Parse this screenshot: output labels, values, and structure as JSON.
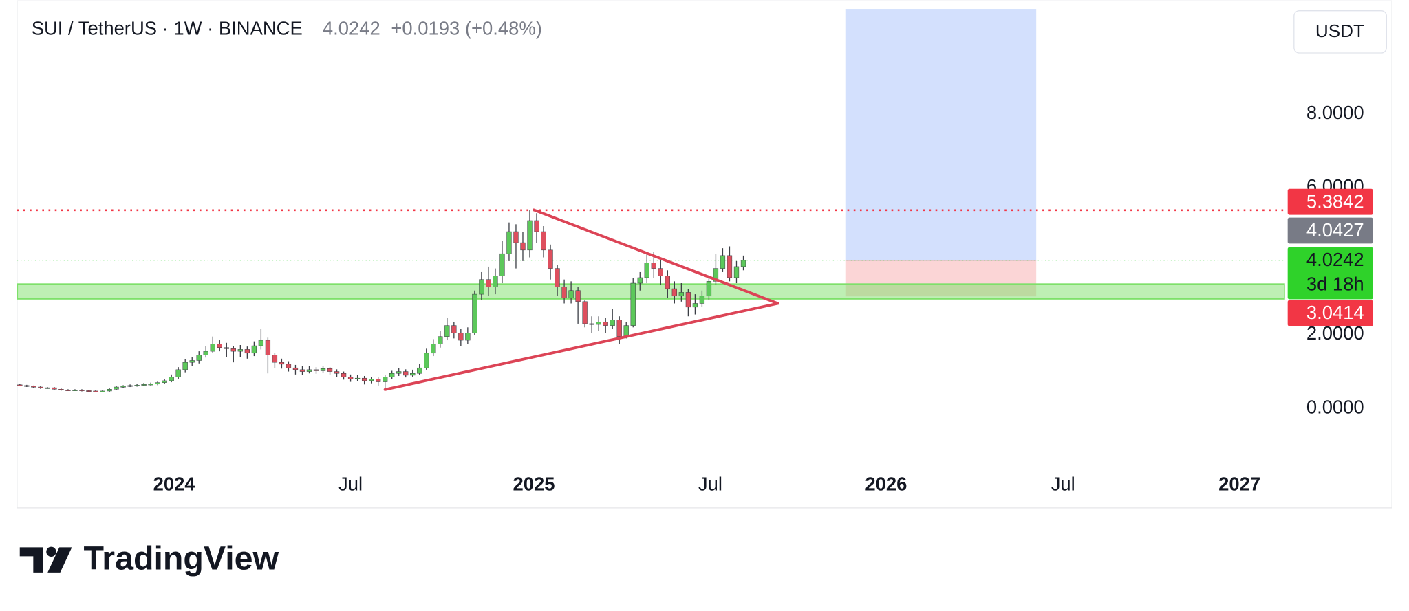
{
  "header": {
    "symbol": "SUI / TetherUS · 1W · BINANCE",
    "last": "4.0242",
    "change": "+0.0193 (+0.48%)",
    "currency_button": "USDT"
  },
  "chart_data": {
    "type": "candlestick",
    "xlim": [
      -0.4,
      183.6
    ],
    "xticks": [
      {
        "value": 22.4,
        "label": "2024"
      },
      {
        "value": 48,
        "label": "Jul"
      },
      {
        "value": 74.6,
        "label": "2025"
      },
      {
        "value": 100.2,
        "label": "Jul"
      },
      {
        "value": 125.7,
        "label": "2026"
      },
      {
        "value": 151.4,
        "label": "Jul"
      },
      {
        "value": 177,
        "label": "2027"
      }
    ],
    "ylim": [
      -1.46,
      10.85
    ],
    "yticks": [
      {
        "value": 0,
        "label": "0.0000"
      },
      {
        "value": 2,
        "label": "2.0000"
      },
      {
        "value": 6,
        "label": "6.0000"
      },
      {
        "value": 8,
        "label": "8.0000"
      }
    ],
    "up_color": "#5cc85a",
    "down_color": "#de4f5e",
    "open": [
      0.64,
      0.62,
      0.6,
      0.58,
      0.55,
      0.56,
      0.52,
      0.5,
      0.49,
      0.5,
      0.48,
      0.47,
      0.46,
      0.47,
      0.52,
      0.58,
      0.6,
      0.62,
      0.63,
      0.65,
      0.66,
      0.7,
      0.75,
      0.85,
      1.05,
      1.25,
      1.3,
      1.45,
      1.55,
      1.75,
      1.65,
      1.62,
      1.55,
      1.6,
      1.5,
      1.7,
      1.85,
      1.45,
      1.25,
      1.2,
      1.1,
      1.05,
      1.0,
      1.05,
      1.02,
      1.08,
      1.0,
      0.95,
      0.85,
      0.8,
      0.82,
      0.75,
      0.8,
      0.72,
      0.85,
      0.95,
      1.0,
      0.9,
      0.95,
      1.1,
      1.5,
      1.75,
      1.95,
      2.25,
      2.05,
      1.85,
      2.05,
      3.1,
      3.5,
      3.3,
      3.6,
      4.2,
      4.8,
      4.5,
      4.3,
      5.1,
      4.8,
      4.3,
      3.8,
      3.3,
      3.0,
      3.2,
      2.9,
      2.3,
      2.28,
      2.35,
      2.25,
      2.4,
      1.95,
      2.25,
      3.4,
      3.55,
      3.95,
      3.8,
      3.6,
      3.25,
      3.05,
      3.15,
      2.75,
      2.85,
      3.05,
      3.45,
      3.8,
      4.15,
      3.55,
      3.85
    ],
    "high": [
      0.67,
      0.64,
      0.62,
      0.6,
      0.58,
      0.58,
      0.54,
      0.52,
      0.52,
      0.52,
      0.5,
      0.49,
      0.5,
      0.55,
      0.61,
      0.63,
      0.65,
      0.67,
      0.69,
      0.7,
      0.74,
      0.79,
      0.92,
      1.12,
      1.33,
      1.4,
      1.55,
      1.7,
      1.95,
      1.85,
      1.78,
      1.7,
      1.72,
      1.68,
      1.82,
      2.15,
      1.92,
      1.5,
      1.35,
      1.28,
      1.18,
      1.15,
      1.15,
      1.12,
      1.15,
      1.12,
      1.06,
      1.0,
      0.92,
      0.9,
      0.88,
      0.86,
      0.84,
      0.9,
      1.02,
      1.1,
      1.06,
      1.05,
      1.2,
      1.62,
      1.88,
      2.1,
      2.45,
      2.35,
      2.15,
      2.2,
      3.2,
      3.7,
      3.85,
      3.8,
      4.55,
      5.05,
      5.0,
      4.8,
      5.38,
      5.3,
      4.95,
      4.45,
      3.9,
      3.5,
      3.45,
      3.3,
      2.95,
      2.5,
      2.5,
      2.45,
      2.7,
      2.5,
      2.35,
      3.55,
      3.7,
      4.2,
      4.25,
      4.05,
      3.75,
      3.45,
      3.4,
      3.25,
      3.1,
      3.2,
      3.6,
      4.2,
      4.35,
      4.4,
      4.0,
      4.15
    ],
    "low": [
      0.6,
      0.58,
      0.56,
      0.53,
      0.53,
      0.5,
      0.48,
      0.47,
      0.47,
      0.46,
      0.45,
      0.44,
      0.44,
      0.45,
      0.5,
      0.56,
      0.58,
      0.59,
      0.6,
      0.62,
      0.63,
      0.66,
      0.71,
      0.8,
      0.98,
      1.15,
      1.22,
      1.38,
      1.5,
      1.55,
      1.4,
      1.25,
      1.4,
      1.35,
      1.42,
      1.6,
      0.95,
      1.1,
      1.08,
      1.0,
      0.92,
      0.9,
      0.95,
      0.94,
      0.97,
      0.92,
      0.85,
      0.78,
      0.72,
      0.74,
      0.65,
      0.68,
      0.62,
      0.52,
      0.8,
      0.88,
      0.84,
      0.85,
      0.9,
      1.05,
      1.42,
      1.65,
      1.85,
      1.9,
      1.7,
      1.75,
      2.0,
      2.95,
      3.05,
      3.1,
      3.4,
      4.0,
      3.8,
      4.0,
      4.1,
      4.5,
      4.1,
      3.5,
      3.05,
      2.85,
      2.85,
      2.3,
      2.2,
      2.05,
      2.1,
      2.05,
      2.15,
      1.75,
      1.9,
      2.2,
      3.2,
      3.4,
      3.55,
      3.35,
      3.0,
      2.85,
      2.9,
      2.5,
      2.55,
      2.75,
      2.95,
      3.35,
      3.7,
      3.45,
      3.4,
      3.75
    ],
    "close": [
      0.62,
      0.6,
      0.58,
      0.55,
      0.56,
      0.52,
      0.5,
      0.49,
      0.5,
      0.48,
      0.47,
      0.46,
      0.47,
      0.52,
      0.58,
      0.6,
      0.62,
      0.63,
      0.65,
      0.66,
      0.7,
      0.75,
      0.85,
      1.05,
      1.25,
      1.3,
      1.45,
      1.55,
      1.75,
      1.65,
      1.62,
      1.55,
      1.6,
      1.5,
      1.7,
      1.85,
      1.45,
      1.25,
      1.2,
      1.1,
      1.05,
      1.0,
      1.05,
      1.02,
      1.08,
      1.0,
      0.95,
      0.85,
      0.8,
      0.82,
      0.75,
      0.8,
      0.72,
      0.85,
      0.95,
      1.0,
      0.9,
      0.95,
      1.1,
      1.5,
      1.75,
      1.95,
      2.25,
      2.05,
      1.85,
      2.05,
      3.1,
      3.5,
      3.3,
      3.6,
      4.2,
      4.8,
      4.5,
      4.3,
      5.1,
      4.8,
      4.3,
      3.8,
      3.3,
      3.0,
      3.2,
      2.9,
      2.3,
      2.28,
      2.35,
      2.25,
      2.4,
      1.95,
      2.25,
      3.4,
      3.55,
      3.95,
      3.8,
      3.6,
      3.25,
      3.05,
      3.15,
      2.75,
      2.85,
      3.05,
      3.45,
      3.8,
      4.15,
      3.55,
      3.85,
      4.02
    ],
    "zone": {
      "range": [
        2.98,
        3.37
      ],
      "color": "#7ee06a"
    },
    "trendlines": {
      "color": "#dc4456",
      "lines": [
        [
          [
            53,
            0.51
          ],
          [
            110,
            2.85
          ]
        ],
        [
          [
            74.6,
            5.39
          ],
          [
            110,
            2.85
          ]
        ]
      ]
    },
    "position": {
      "x": [
        119.8,
        147.5
      ],
      "target": 10.85,
      "entry": 4.0242,
      "stop": 3.0414,
      "profit_color": "#d3e0fd",
      "loss_color": "#fbd5d6"
    },
    "price_labels": [
      {
        "value": 5.3842,
        "color": "#f23645",
        "line": "dotted"
      },
      {
        "value": 4.0427,
        "color": "#787b86"
      },
      {
        "value": 4.0242,
        "color": "#2fd22a",
        "line": "dotted",
        "countdown": "3d 18h"
      },
      {
        "value": 3.0414,
        "color": "#f23645"
      }
    ]
  },
  "footer": {
    "brand": "TradingView"
  }
}
